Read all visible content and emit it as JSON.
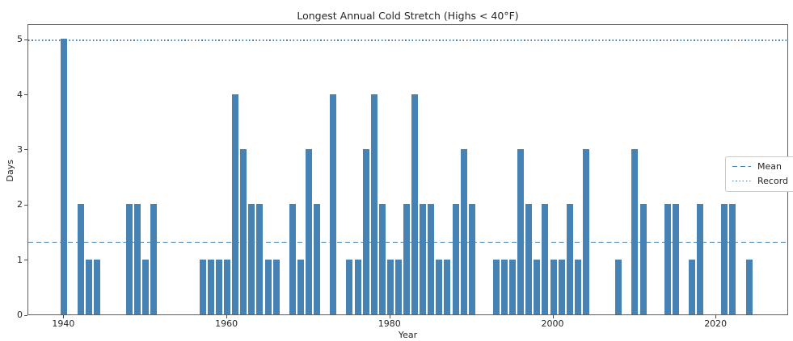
{
  "figure": {
    "title": "Longest Annual Cold Stretch (Highs < 40°F)",
    "xlabel": "Year",
    "ylabel": "Days"
  },
  "legend": {
    "position": "center right",
    "entries": [
      {
        "label": "Mean",
        "style": "dashed"
      },
      {
        "label": "Record",
        "style": "dotted"
      }
    ]
  },
  "colors": {
    "bar": "#4682B4",
    "mean_line": "#4682B4",
    "record_line": "#4682B4",
    "spine": "#5f5f5f",
    "text": "#262626"
  },
  "chart_data": {
    "type": "bar",
    "title": "Longest Annual Cold Stretch (Highs < 40°F)",
    "xlabel": "Year",
    "ylabel": "Days",
    "grid": false,
    "legend_position": "center right",
    "bar_color": "#4682B4",
    "x_ticks": [
      1940,
      1960,
      1980,
      2000,
      2020
    ],
    "y_ticks": [
      0,
      1,
      2,
      3,
      4,
      5
    ],
    "xlim": [
      1935.6,
      2028.9
    ],
    "ylim": [
      0,
      5.28
    ],
    "mean_value": 1.34,
    "record_value": 5,
    "x": [
      1940,
      1941,
      1942,
      1943,
      1944,
      1945,
      1946,
      1947,
      1948,
      1949,
      1950,
      1951,
      1952,
      1953,
      1954,
      1955,
      1956,
      1957,
      1958,
      1959,
      1960,
      1961,
      1962,
      1963,
      1964,
      1965,
      1966,
      1967,
      1968,
      1969,
      1970,
      1971,
      1972,
      1973,
      1974,
      1975,
      1976,
      1977,
      1978,
      1979,
      1980,
      1981,
      1982,
      1983,
      1984,
      1985,
      1986,
      1987,
      1988,
      1989,
      1990,
      1991,
      1992,
      1993,
      1994,
      1995,
      1996,
      1997,
      1998,
      1999,
      2000,
      2001,
      2002,
      2003,
      2004,
      2005,
      2006,
      2007,
      2008,
      2009,
      2010,
      2011,
      2012,
      2013,
      2014,
      2015,
      2016,
      2017,
      2018,
      2019,
      2020,
      2021,
      2022,
      2023,
      2024
    ],
    "values": [
      5,
      0,
      2,
      1,
      1,
      0,
      0,
      0,
      2,
      2,
      1,
      2,
      0,
      0,
      0,
      0,
      0,
      1,
      1,
      1,
      1,
      4,
      3,
      2,
      2,
      1,
      1,
      0,
      2,
      1,
      3,
      2,
      0,
      4,
      0,
      1,
      1,
      3,
      4,
      2,
      1,
      1,
      2,
      4,
      2,
      2,
      1,
      1,
      2,
      3,
      2,
      0,
      0,
      1,
      1,
      1,
      3,
      2,
      1,
      2,
      1,
      1,
      2,
      1,
      3,
      0,
      0,
      0,
      1,
      0,
      3,
      2,
      0,
      0,
      2,
      2,
      0,
      1,
      2,
      0,
      0,
      2,
      2,
      0,
      1
    ]
  }
}
